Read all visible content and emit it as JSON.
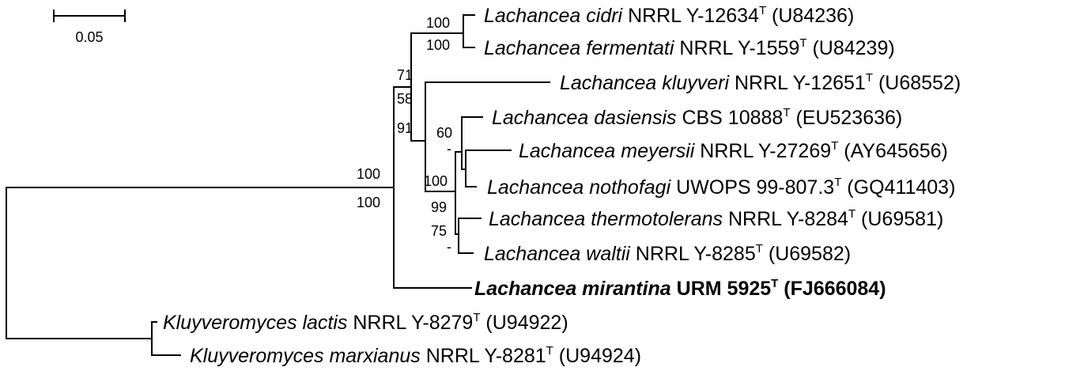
{
  "scale_bar": {
    "label": "0.05"
  },
  "taxa": [
    {
      "genus": "Lachancea",
      "species": "cidri",
      "strain": "NRRL Y-12634",
      "type_mark": "T",
      "accession": "(U84236)"
    },
    {
      "genus": "Lachancea",
      "species": "fermentati",
      "strain": "NRRL Y-1559",
      "type_mark": "T",
      "accession": "(U84239)"
    },
    {
      "genus": "Lachancea",
      "species": "kluyveri",
      "strain": "NRRL Y-12651",
      "type_mark": "T",
      "accession": "(U68552)"
    },
    {
      "genus": "Lachancea",
      "species": "dasiensis",
      "strain": "CBS 10888",
      "type_mark": "T",
      "accession": "(EU523636)"
    },
    {
      "genus": "Lachancea",
      "species": "meyersii",
      "strain": "NRRL Y-27269",
      "type_mark": "T",
      "accession": "(AY645656)"
    },
    {
      "genus": "Lachancea",
      "species": "nothofagi",
      "strain": "UWOPS 99-807.3",
      "type_mark": "T",
      "accession": "(GQ411403)"
    },
    {
      "genus": "Lachancea",
      "species": "thermotolerans",
      "strain": "NRRL Y-8284",
      "type_mark": "T",
      "accession": "(U69581)"
    },
    {
      "genus": "Lachancea",
      "species": "waltii",
      "strain": "NRRL Y-8285",
      "type_mark": "T",
      "accession": "(U69582)"
    },
    {
      "genus": "Lachancea",
      "species": "mirantina",
      "strain": "URM 5925",
      "type_mark": "T",
      "accession": "(FJ666084)",
      "highlight": true
    },
    {
      "genus": "Kluyveromyces",
      "species": "lactis",
      "strain": "NRRL Y-8279",
      "type_mark": "T",
      "accession": "(U94922)"
    },
    {
      "genus": "Kluyveromyces",
      "species": "marxianus",
      "strain": "NRRL Y-8281",
      "type_mark": "T",
      "accession": "(U94924)"
    }
  ],
  "bootstrap": {
    "cidri_fermentati_top": "100",
    "cidri_fermentati_bottom": "100",
    "kluyveri_group_top": "71",
    "kluyveri_group_mid": "58",
    "kluyveri_group_bottom": "91",
    "dasiensis_group_top": "60",
    "dasiensis_group_bottom": "-",
    "inner_clade": "100",
    "thermo_group_top": "99",
    "thermo_group_mid": "75",
    "thermo_group_bottom": "-",
    "lachancea_top": "100",
    "lachancea_bottom": "100"
  }
}
